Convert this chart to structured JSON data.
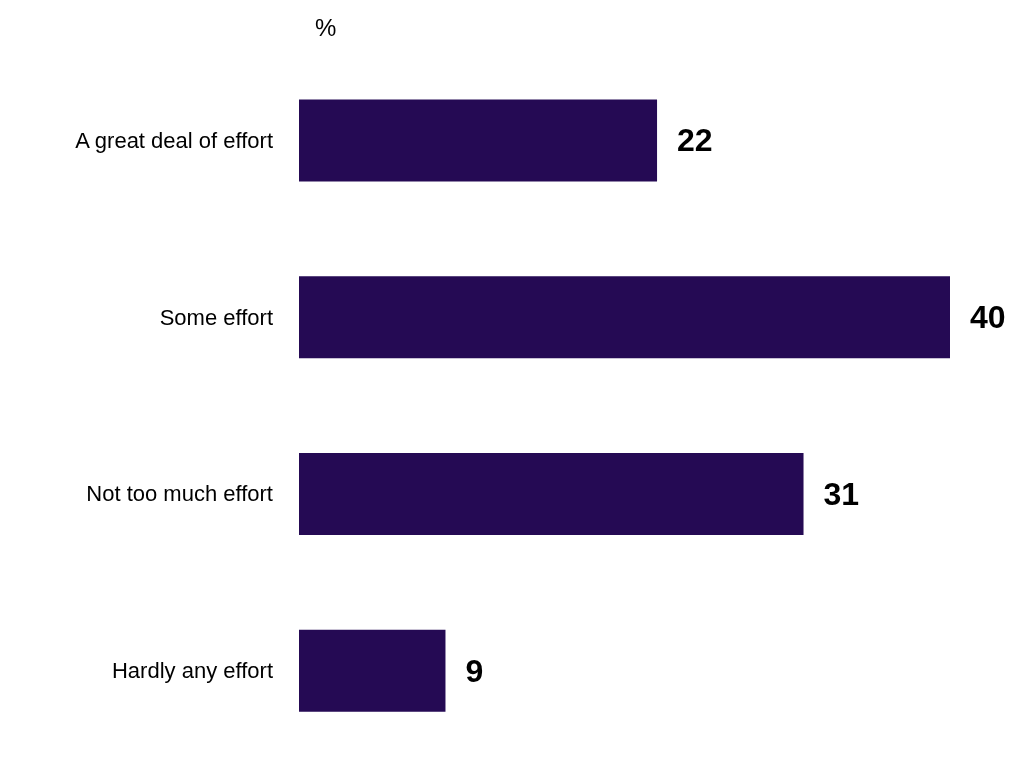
{
  "chart_data": {
    "type": "bar",
    "orientation": "horizontal",
    "title": "%",
    "categories": [
      "A great deal of effort",
      "Some effort",
      "Not too much effort",
      "Hardly any effort"
    ],
    "values": [
      22,
      40,
      31,
      9
    ],
    "color": "#250a54",
    "data_labels": true
  }
}
